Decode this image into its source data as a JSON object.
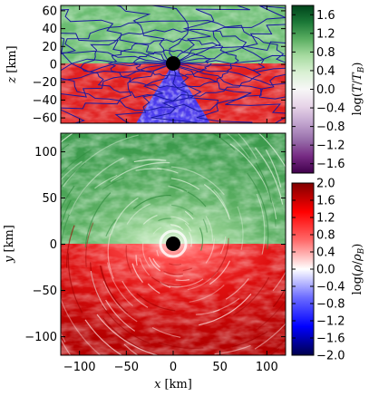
{
  "figure": {
    "top_panel": {
      "ylabel": "z [km]",
      "ylabel_var": "z",
      "ylabel_unit": "[km]",
      "yticks": [
        "60",
        "40",
        "20",
        "0",
        "−20",
        "−40",
        "−60"
      ],
      "ylim": [
        -66,
        66
      ],
      "xlim": [
        -120,
        120
      ]
    },
    "bottom_panel": {
      "ylabel_var": "y",
      "ylabel_unit": "[km]",
      "xlabel_var": "x",
      "xlabel_unit": "[km]",
      "yticks": [
        "100",
        "50",
        "0",
        "−50",
        "−100"
      ],
      "xticks": [
        "−100",
        "−50",
        "0",
        "50",
        "100"
      ],
      "xlim": [
        -120,
        120
      ],
      "ylim": [
        -120,
        120
      ]
    },
    "colorbar_temperature": {
      "label": "log(T/T_B)",
      "ticks": [
        "1.6",
        "1.2",
        "0.8",
        "0.4",
        "0.0",
        "−0.4",
        "−0.8",
        "−1.2",
        "−1.6"
      ],
      "range": [
        -1.8,
        1.8
      ],
      "colors": [
        "#40004b",
        "#762a83",
        "#9970ab",
        "#c2a5cf",
        "#e7d4e8",
        "#f7f7f7",
        "#d9f0d3",
        "#a6dba0",
        "#5aae61",
        "#1b7837",
        "#00441b"
      ]
    },
    "colorbar_density": {
      "label": "log(ρ/ρ_B)",
      "ticks": [
        "2.0",
        "1.6",
        "1.2",
        "0.8",
        "0.4",
        "0.0",
        "−0.4",
        "−0.8",
        "−1.2",
        "−1.6",
        "−2.0"
      ],
      "range": [
        -2.0,
        2.0
      ],
      "colors": [
        "#00004c",
        "#0000ff",
        "#6a6aff",
        "#ffffff",
        "#ff6a6a",
        "#ff0000",
        "#800000"
      ]
    }
  },
  "chart_data": [
    {
      "type": "heatmap",
      "panel": "top (meridional slice)",
      "xlabel": "",
      "ylabel": "z [km]",
      "xlim": [
        -120,
        120
      ],
      "ylim": [
        -66,
        66
      ],
      "upper_half_quantity": "log(T/T_B)",
      "lower_half_quantity": "log(ρ/ρ_B)",
      "contours": "blue magnetic field lines",
      "central_object": "black disk at origin"
    },
    {
      "type": "heatmap",
      "panel": "bottom (equatorial slice)",
      "xlabel": "x [km]",
      "ylabel": "y [km]",
      "xlim": [
        -120,
        120
      ],
      "ylim": [
        -120,
        120
      ],
      "upper_half_quantity": "log(T/T_B)",
      "lower_half_quantity": "log(ρ/ρ_B)",
      "central_object": "black disk at origin"
    }
  ]
}
